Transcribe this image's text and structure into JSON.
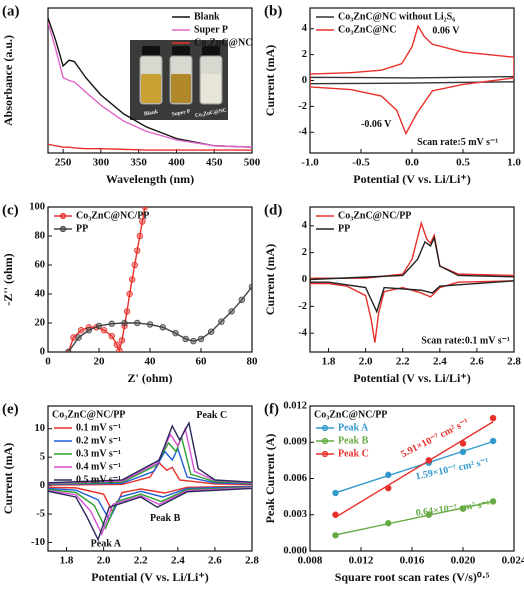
{
  "chart_data": [
    {
      "type": "line",
      "label": "(a)",
      "x_label": "Wavelength (nm)",
      "y_label": "Absorbance (a.u.)",
      "x": [
        230,
        240,
        250,
        258,
        265,
        280,
        300,
        330,
        360,
        400,
        450,
        500
      ],
      "series": [
        {
          "name": "Blank",
          "color": "#111111",
          "values": [
            0.93,
            0.78,
            0.6,
            0.64,
            0.63,
            0.52,
            0.4,
            0.27,
            0.18,
            0.1,
            0.05,
            0.04
          ]
        },
        {
          "name": "Super P",
          "color": "#e066c8",
          "values": [
            0.9,
            0.72,
            0.52,
            0.5,
            0.49,
            0.42,
            0.33,
            0.22,
            0.15,
            0.09,
            0.05,
            0.04
          ]
        },
        {
          "name": "Co₃ZnC@NC",
          "color": "#e8302b",
          "values": [
            0.06,
            0.05,
            0.04,
            0.04,
            0.035,
            0.03,
            0.03,
            0.025,
            0.02,
            0.02,
            0.02,
            0.02
          ]
        }
      ],
      "xlim": [
        230,
        500
      ],
      "xticks": [
        250,
        300,
        350,
        400,
        450,
        500
      ],
      "ylim": [
        0,
        1
      ],
      "legend": "upper right",
      "inset_labels": [
        "Blank",
        "Super P",
        "Co₃ZnC@NC"
      ]
    },
    {
      "type": "line",
      "label": "(b)",
      "x_label": "Potential (V vs. Li/Li⁺)",
      "y_label": "Current (mA)",
      "series": [
        {
          "name": "Co₃ZnC@NC without Li₂S₆",
          "color": "#333333",
          "x": [
            -1,
            0,
            1,
            1,
            0,
            -1,
            -1
          ],
          "values": [
            0.25,
            0.2,
            0.3,
            -0.1,
            -0.2,
            -0.25,
            0.25
          ]
        },
        {
          "name": "Co₃ZnC@NC",
          "color": "#e8302b",
          "x": [
            -1,
            -0.6,
            -0.3,
            -0.1,
            0,
            0.06,
            0.12,
            0.2,
            0.5,
            1.0,
            1.0,
            0.5,
            0.2,
            0.05,
            -0.06,
            -0.15,
            -0.3,
            -0.6,
            -1.0,
            -1.0
          ],
          "values": [
            0.5,
            0.6,
            0.8,
            1.3,
            2.6,
            4.2,
            3.4,
            2.8,
            2.2,
            1.8,
            0.2,
            -0.3,
            -0.8,
            -2.5,
            -4.1,
            -2.3,
            -1.2,
            -0.7,
            -0.5,
            0.5
          ]
        }
      ],
      "xlim": [
        -1,
        1
      ],
      "xticks": [
        {
          "value": -1,
          "label": "-1.0"
        },
        -0.5,
        {
          "value": 0,
          "label": "0.0"
        },
        0.5,
        {
          "value": 1,
          "label": "1.0"
        }
      ],
      "ylim": [
        -5.6,
        5.6
      ],
      "yticks": [
        -4,
        -2,
        0,
        2,
        4
      ],
      "legend": "upper left",
      "annotations": [
        {
          "text": "0.06 V",
          "color": "#111111"
        },
        {
          "text": "-0.06 V",
          "color": "#111111"
        },
        {
          "text": "Scan rate:5 mV s⁻¹",
          "color": "#111111"
        }
      ]
    },
    {
      "type": "line",
      "label": "(c)",
      "x_label": "Z' (ohm)",
      "y_label": "-Z'' (ohm)",
      "marker": "circle",
      "series": [
        {
          "name": "Co₃ZnC@NC/PP",
          "color": "#e8302b",
          "x": [
            8,
            10,
            13,
            16,
            19,
            22,
            25,
            27,
            28,
            29,
            30,
            31,
            32,
            33,
            34,
            35,
            36,
            37,
            38
          ],
          "values": [
            0,
            10,
            15,
            17,
            17,
            15,
            11,
            5,
            1,
            8,
            18,
            28,
            40,
            50,
            60,
            70,
            80,
            90,
            100
          ]
        },
        {
          "name": "PP",
          "color": "#444444",
          "x": [
            8,
            12,
            16,
            20,
            25,
            30,
            35,
            40,
            45,
            50,
            54,
            57,
            60,
            64,
            68,
            72,
            76,
            80
          ],
          "values": [
            0,
            10,
            15,
            18,
            19.5,
            20,
            20,
            19,
            17,
            13,
            9,
            7.5,
            9,
            14,
            21,
            28,
            36,
            45
          ]
        }
      ],
      "xlim": [
        0,
        80
      ],
      "xticks": [
        0,
        20,
        40,
        60,
        80
      ],
      "ylim": [
        0,
        100
      ],
      "yticks": [
        0,
        20,
        40,
        60,
        80,
        100
      ],
      "legend": "upper left"
    },
    {
      "type": "line",
      "label": "(d)",
      "x_label": "Potential (V vs. Li/Li⁺)",
      "y_label": "Current (mA)",
      "series": [
        {
          "name": "Co₃ZnC@NC/PP",
          "color": "#e8302b",
          "x": [
            2.8,
            2.5,
            2.4,
            2.35,
            2.3,
            2.2,
            2.1,
            2.07,
            2.05,
            2.03,
            2.0,
            1.9,
            1.8,
            1.7,
            1.7,
            2.0,
            2.2,
            2.25,
            2.3,
            2.33,
            2.35,
            2.37,
            2.4,
            2.5,
            2.8
          ],
          "values": [
            -0.1,
            -0.2,
            -0.6,
            -1.3,
            -1.0,
            -0.6,
            -0.9,
            -2.5,
            -4.7,
            -3.0,
            -1.2,
            -0.5,
            -0.3,
            -0.3,
            0.1,
            0.1,
            0.4,
            1.5,
            4.2,
            3.0,
            2.7,
            3.3,
            1.0,
            0.4,
            0.3
          ]
        },
        {
          "name": "PP",
          "color": "#222222",
          "x": [
            2.8,
            2.4,
            2.36,
            2.3,
            2.1,
            2.08,
            2.06,
            2.03,
            2.0,
            1.8,
            1.7,
            1.7,
            2.2,
            2.28,
            2.32,
            2.35,
            2.37,
            2.4,
            2.5,
            2.8
          ],
          "values": [
            -0.1,
            -0.5,
            -1.0,
            -0.8,
            -0.6,
            -1.5,
            -2.4,
            -1.5,
            -0.6,
            -0.2,
            -0.2,
            0.0,
            0.3,
            1.5,
            2.8,
            2.5,
            3.1,
            1.0,
            0.3,
            0.2
          ]
        }
      ],
      "xlim": [
        1.7,
        2.8
      ],
      "xticks": [
        1.8,
        {
          "value": 2,
          "label": "2.0"
        },
        2.2,
        2.4,
        2.6,
        2.8
      ],
      "ylim": [
        -5.4,
        5.4
      ],
      "yticks": [
        -4,
        -2,
        0,
        2,
        4
      ],
      "legend": "upper left",
      "annotations": [
        {
          "text": "Scan rate:0.1 mV s⁻¹",
          "color": "#111111"
        }
      ]
    },
    {
      "type": "line",
      "label": "(e)",
      "x_label": "Potential (V vs. Li/Li⁺)",
      "y_label": "Current (mA)",
      "legend_title": "Co₃ZnC@NC/PP",
      "series": [
        {
          "name": "0.1 mV s⁻¹",
          "color": "#e8302b",
          "x": [
            2.8,
            2.45,
            2.33,
            2.2,
            2.1,
            2.05,
            2.0,
            1.85,
            1.7,
            1.7,
            2.1,
            2.25,
            2.3,
            2.34,
            2.37,
            2.41,
            2.6,
            2.8
          ],
          "values": [
            -0.1,
            -0.3,
            -1.3,
            -0.6,
            -1.2,
            -4.7,
            -1.5,
            -0.4,
            -0.3,
            0.1,
            0.2,
            1.5,
            4.0,
            2.7,
            3.2,
            1.0,
            0.3,
            0.2
          ]
        },
        {
          "name": "0.2 mV s⁻¹",
          "color": "#1f5fd6",
          "x": [
            2.8,
            2.45,
            2.32,
            2.2,
            2.09,
            2.03,
            1.97,
            1.85,
            1.7,
            1.7,
            2.1,
            2.27,
            2.33,
            2.37,
            2.4,
            2.45,
            2.6,
            2.8
          ],
          "values": [
            -0.2,
            -0.5,
            -2.0,
            -1.0,
            -2.0,
            -6.0,
            -2.5,
            -0.8,
            -0.5,
            0.2,
            0.4,
            2.5,
            6.0,
            4.5,
            6.5,
            1.5,
            0.5,
            0.3
          ]
        },
        {
          "name": "0.3 mV s⁻¹",
          "color": "#2ca02c",
          "x": [
            2.8,
            2.45,
            2.31,
            2.2,
            2.07,
            2.01,
            1.95,
            1.85,
            1.7,
            1.7,
            2.1,
            2.28,
            2.35,
            2.39,
            2.42,
            2.47,
            2.6,
            2.8
          ],
          "values": [
            -0.3,
            -0.7,
            -2.8,
            -1.5,
            -2.8,
            -7.5,
            -3.5,
            -1.2,
            -0.7,
            0.3,
            0.6,
            3.5,
            7.5,
            6.0,
            8.5,
            2.0,
            0.7,
            0.4
          ]
        },
        {
          "name": "0.4 mV s⁻¹",
          "color": "#d64fd6",
          "x": [
            2.8,
            2.45,
            2.3,
            2.2,
            2.05,
            1.99,
            1.93,
            1.85,
            1.7,
            1.7,
            2.1,
            2.29,
            2.36,
            2.4,
            2.44,
            2.49,
            2.6,
            2.8
          ],
          "values": [
            -0.4,
            -0.9,
            -3.3,
            -1.8,
            -3.3,
            -8.5,
            -4.5,
            -1.6,
            -0.9,
            0.4,
            0.8,
            4.0,
            9.0,
            7.0,
            10.0,
            2.5,
            0.9,
            0.5
          ]
        },
        {
          "name": "0.5 mV s⁻¹",
          "color": "#2a2a5a",
          "x": [
            2.8,
            2.45,
            2.29,
            2.2,
            2.03,
            1.97,
            1.91,
            1.85,
            1.7,
            1.7,
            2.1,
            2.3,
            2.37,
            2.41,
            2.46,
            2.51,
            2.6,
            2.8
          ],
          "values": [
            -0.5,
            -1.1,
            -3.8,
            -2.0,
            -3.8,
            -9.5,
            -5.5,
            -2.0,
            -1.0,
            0.5,
            1.0,
            4.5,
            10.5,
            8.0,
            11.0,
            3.0,
            1.0,
            0.6
          ]
        }
      ],
      "xlim": [
        1.7,
        2.8
      ],
      "xticks": [
        1.8,
        {
          "value": 2,
          "label": "2.0"
        },
        2.2,
        2.4,
        2.6,
        2.8
      ],
      "ylim": [
        -11.5,
        14
      ],
      "yticks": [
        -10,
        -5,
        0,
        5,
        10
      ],
      "legend": "upper left",
      "annotations": [
        {
          "text": "Peak C",
          "color": "#111111"
        },
        {
          "text": "Peak B",
          "color": "#111111"
        },
        {
          "text": "Peak A",
          "color": "#111111"
        }
      ]
    },
    {
      "type": "scatter",
      "label": "(f)",
      "x_label": "Square root scan rates (V/s)⁰·⁵",
      "y_label": "Peak Current (A)",
      "legend_title": "Co₃ZnC@NC/PP",
      "fit_line": true,
      "x": [
        0.01,
        0.01414,
        0.01732,
        0.02,
        0.02236
      ],
      "series": [
        {
          "name": "Peak A",
          "color": "#3399cc",
          "values": [
            0.0048,
            0.0063,
            0.0073,
            0.0082,
            0.0091
          ]
        },
        {
          "name": "Peak B",
          "color": "#66aa44",
          "values": [
            0.0013,
            0.0023,
            0.003,
            0.0035,
            0.0041
          ]
        },
        {
          "name": "Peak C",
          "color": "#e8302b",
          "values": [
            0.003,
            0.0052,
            0.0075,
            0.0089,
            0.011
          ]
        }
      ],
      "xlim": [
        0.008,
        0.024
      ],
      "xticks": [
        0.008,
        0.012,
        0.016,
        {
          "value": 0.02,
          "label": "0.020"
        },
        0.024
      ],
      "ylim": [
        0,
        0.012
      ],
      "yticks": [
        {
          "value": 0,
          "label": "0.000"
        },
        0.003,
        0.006,
        0.009,
        0.012
      ],
      "legend": "upper left",
      "annotations": [
        {
          "text": "5.91×10⁻⁷ cm² s⁻¹",
          "color": "#e8302b"
        },
        {
          "text": "1.59×10⁻⁷ cm² s⁻¹",
          "color": "#3399cc"
        },
        {
          "text": "0.64×10⁻⁷ cm² s⁻¹",
          "color": "#66aa44"
        }
      ]
    }
  ]
}
